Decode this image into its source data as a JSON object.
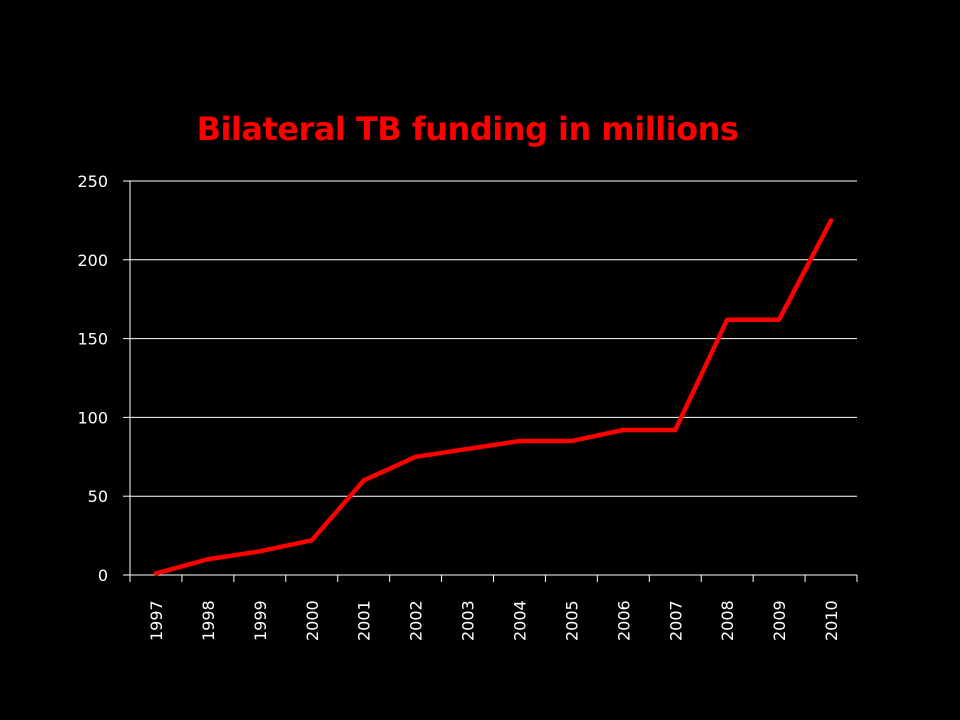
{
  "chart_data": {
    "type": "line",
    "title": "Bilateral TB funding in millions",
    "xlabel": "",
    "ylabel": "",
    "categories": [
      "1997",
      "1998",
      "1999",
      "2000",
      "2001",
      "2002",
      "2003",
      "2004",
      "2005",
      "2006",
      "2007",
      "2008",
      "2009",
      "2010"
    ],
    "series": [
      {
        "values": [
          1,
          10,
          15,
          22,
          60,
          75,
          80,
          85,
          85,
          92,
          92,
          162,
          162,
          225
        ]
      }
    ],
    "ylim": [
      0,
      250
    ],
    "yticks": [
      "0",
      "50",
      "100",
      "150",
      "200",
      "250"
    ],
    "grid": true,
    "legend": "none",
    "colors": {
      "background": "#000000",
      "line": "#ff0000",
      "title": "#ff0000",
      "grid": "#ffffff",
      "text": "#ffffff"
    }
  }
}
